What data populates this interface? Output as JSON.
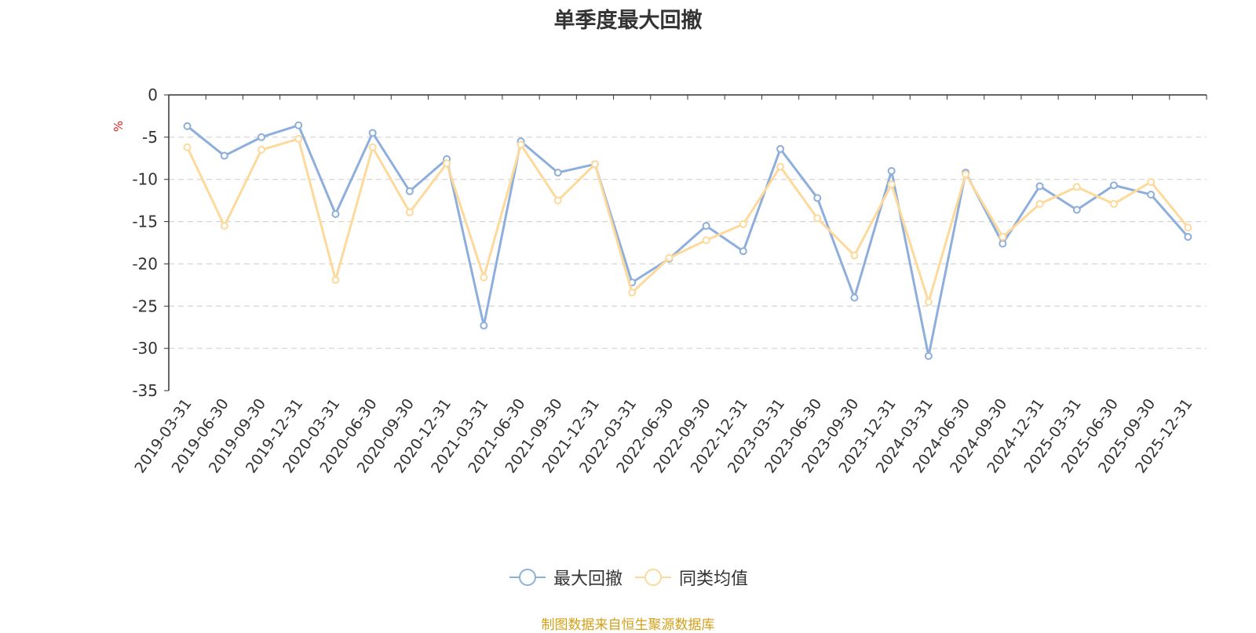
{
  "chart_data": {
    "type": "line",
    "title": "单季度最大回撤",
    "ylabel": "%",
    "ylim": [
      -35,
      0
    ],
    "yticks": [
      0,
      -5,
      -10,
      -15,
      -20,
      -25,
      -30,
      -35
    ],
    "grid": true,
    "legend_position": "bottom",
    "categories": [
      "2019-03-31",
      "2019-06-30",
      "2019-09-30",
      "2019-12-31",
      "2020-03-31",
      "2020-06-30",
      "2020-09-30",
      "2020-12-31",
      "2021-03-31",
      "2021-06-30",
      "2021-09-30",
      "2021-12-31",
      "2022-03-31",
      "2022-06-30",
      "2022-09-30",
      "2022-12-31",
      "2023-03-31",
      "2023-06-30",
      "2023-09-30",
      "2023-12-31",
      "2024-03-31",
      "2024-06-30",
      "2024-09-30",
      "2024-12-31",
      "2025-03-31",
      "2025-06-30",
      "2025-09-30",
      "2025-12-31"
    ],
    "series": [
      {
        "name": "最大回撤",
        "color": "#8eaedb",
        "values": [
          -3.7,
          -7.2,
          -5.0,
          -3.6,
          -14.1,
          -4.5,
          -11.4,
          -7.6,
          -27.3,
          -5.5,
          -9.2,
          -8.2,
          -22.2,
          -19.4,
          -15.5,
          -18.5,
          -6.4,
          -12.2,
          -24.0,
          -9.0,
          -30.9,
          -9.2,
          -17.6,
          -10.8,
          -13.6,
          -10.7,
          -11.8,
          -16.8
        ]
      },
      {
        "name": "同类均值",
        "color": "#fdd99b",
        "values": [
          -6.2,
          -15.5,
          -6.5,
          -5.2,
          -21.9,
          -6.2,
          -13.9,
          -8.1,
          -21.6,
          -5.9,
          -12.5,
          -8.2,
          -23.4,
          -19.3,
          -17.2,
          -15.3,
          -8.5,
          -14.6,
          -19.0,
          -10.6,
          -24.5,
          -9.4,
          -16.8,
          -12.9,
          -10.9,
          -12.9,
          -10.3,
          -15.7
        ]
      }
    ]
  },
  "source_note": "制图数据来自恒生聚源数据库"
}
